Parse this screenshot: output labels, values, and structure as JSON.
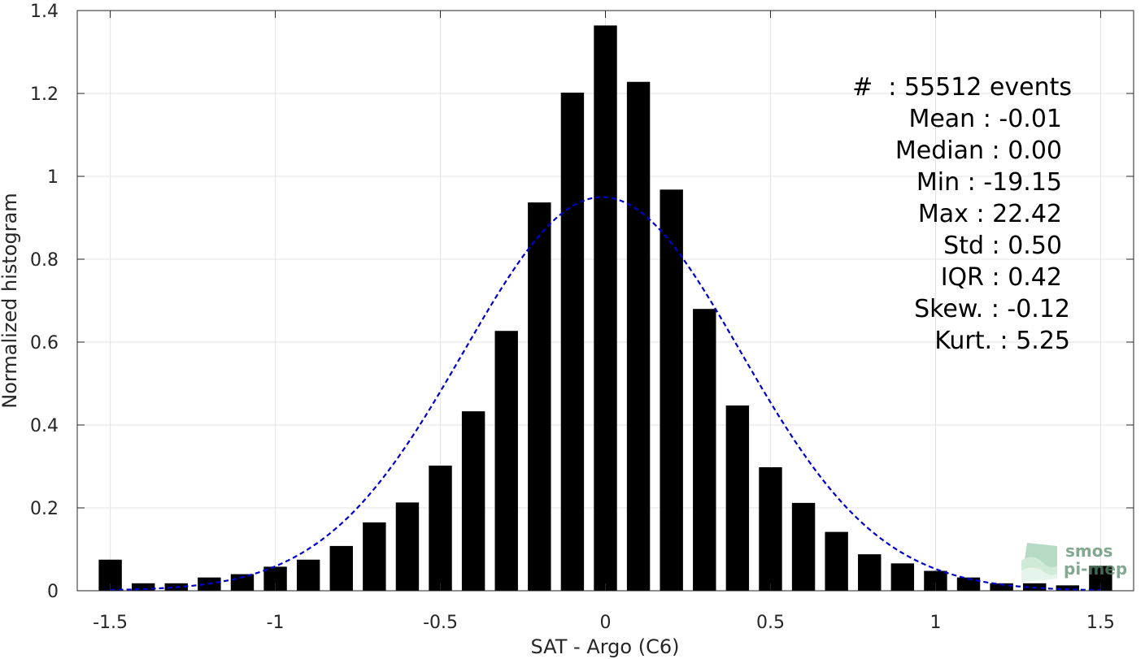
{
  "chart_data": {
    "type": "bar",
    "xlabel": "SAT - Argo (C6)",
    "ylabel": "Normalized histogram",
    "xlim": [
      -1.6,
      1.6
    ],
    "ylim": [
      0,
      1.4
    ],
    "x_ticks": [
      -1.5,
      -1,
      -0.5,
      0,
      0.5,
      1,
      1.5
    ],
    "x_tick_labels": [
      "-1.5",
      "-1",
      "-0.5",
      "0",
      "0.5",
      "1",
      "1.5"
    ],
    "y_ticks": [
      0,
      0.2,
      0.4,
      0.6,
      0.8,
      1,
      1.2,
      1.4
    ],
    "y_tick_labels": [
      "0",
      "0.2",
      "0.4",
      "0.6",
      "0.8",
      "1",
      "1.2",
      "1.4"
    ],
    "grid": true,
    "bar_width": 0.07,
    "bar_color": "#000000",
    "x": [
      -1.5,
      -1.4,
      -1.3,
      -1.2,
      -1.1,
      -1.0,
      -0.9,
      -0.8,
      -0.7,
      -0.6,
      -0.5,
      -0.4,
      -0.3,
      -0.2,
      -0.1,
      0.0,
      0.1,
      0.2,
      0.3,
      0.4,
      0.5,
      0.6,
      0.7,
      0.8,
      0.9,
      1.0,
      1.1,
      1.2,
      1.3,
      1.4,
      1.5
    ],
    "values": [
      0.075,
      0.018,
      0.018,
      0.032,
      0.04,
      0.058,
      0.075,
      0.108,
      0.165,
      0.213,
      0.302,
      0.433,
      0.627,
      0.937,
      1.202,
      1.364,
      1.228,
      0.968,
      0.68,
      0.447,
      0.298,
      0.212,
      0.142,
      0.088,
      0.066,
      0.048,
      0.032,
      0.018,
      0.018,
      0.013,
      0.06
    ],
    "fit_curve": {
      "type": "gaussian",
      "mean": -0.01,
      "std": 0.42,
      "color": "#0000cc",
      "style": "dashed"
    },
    "annotations": [
      "#  : 55512 events",
      "Mean : -0.01",
      "Median : 0.00",
      "Min : -19.15",
      "Max : 22.42",
      "Std : 0.50",
      "IQR : 0.42",
      "Skew. : -0.12",
      "Kurt. : 5.25"
    ]
  },
  "logo": {
    "line1": "smos",
    "line2": "pi-mep"
  }
}
